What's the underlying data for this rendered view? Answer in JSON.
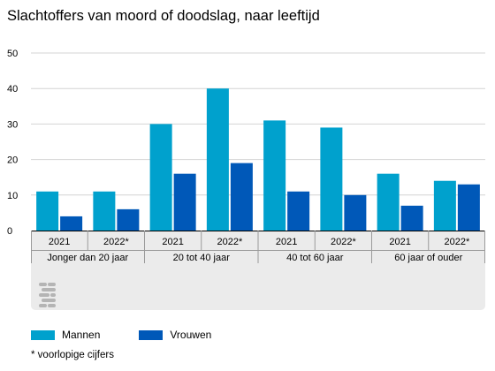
{
  "chart_data": {
    "type": "bar",
    "title": "Slachtoffers van moord of doodslag, naar leeftijd",
    "categories": [
      "2021",
      "2022*",
      "2021",
      "2022*",
      "2021",
      "2022*",
      "2021",
      "2022*"
    ],
    "groups": [
      {
        "label": "Jonger dan 20 jaar",
        "categories": [
          "2021",
          "2022*"
        ]
      },
      {
        "label": "20 tot 40 jaar",
        "categories": [
          "2021",
          "2022*"
        ]
      },
      {
        "label": "40 tot 60 jaar",
        "categories": [
          "2021",
          "2022*"
        ]
      },
      {
        "label": "60 jaar of ouder",
        "categories": [
          "2021",
          "2022*"
        ]
      }
    ],
    "series": [
      {
        "name": "Mannen",
        "color": "#00a1cd",
        "values": [
          11,
          11,
          30,
          40,
          31,
          29,
          16,
          14
        ]
      },
      {
        "name": "Vrouwen",
        "color": "#0058b8",
        "values": [
          4,
          6,
          16,
          19,
          11,
          10,
          7,
          13
        ]
      }
    ],
    "yticks": [
      0,
      10,
      20,
      30,
      40,
      50
    ],
    "ylim": [
      0,
      50
    ],
    "grid": true,
    "legend_position": "bottom-left",
    "xlabel": "",
    "ylabel": "",
    "footnote": "* voorlopige cijfers"
  },
  "icons": {
    "logo": "cbs-logo-icon"
  }
}
